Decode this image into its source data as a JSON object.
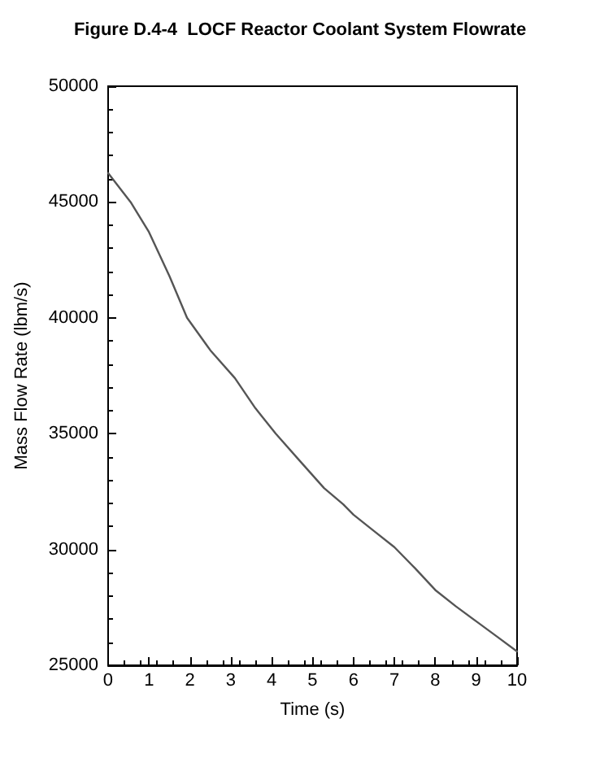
{
  "chart_data": {
    "type": "line",
    "title": "Figure D.4-4  LOCF Reactor Coolant System Flowrate",
    "xlabel": "Time (s)",
    "ylabel": "Mass Flow Rate (lbm/s)",
    "series": [
      {
        "color": "#555555",
        "x": [
          0,
          0.55,
          1.0,
          1.5,
          1.93,
          2.5,
          3.1,
          3.6,
          4.1,
          4.7,
          5.28,
          5.75,
          6.0,
          6.5,
          7.0,
          7.5,
          8.0,
          8.5,
          9.0,
          9.5,
          10.0
        ],
        "values": [
          46250,
          45000,
          43700,
          41800,
          40000,
          38600,
          37400,
          36100,
          35000,
          33800,
          32650,
          31950,
          31500,
          30800,
          30100,
          29200,
          28250,
          27550,
          26900,
          26250,
          25600
        ]
      }
    ],
    "xlim": [
      0,
      10
    ],
    "xticks": [
      0,
      1,
      2,
      3,
      4,
      5,
      6,
      7,
      8,
      9,
      10
    ],
    "ylim": [
      25000,
      50000
    ],
    "yticks": [
      25000,
      30000,
      35000,
      40000,
      45000,
      50000
    ],
    "grid": false,
    "marker": "none",
    "line_style": "solid"
  }
}
